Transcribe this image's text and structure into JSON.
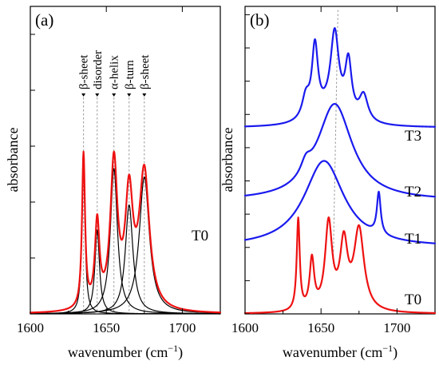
{
  "colors": {
    "T0": "#ee1111",
    "T1": "#1a1aee",
    "T2": "#1a1aee",
    "T3": "#1a1aee",
    "component": "#000000",
    "guide": "#999999"
  },
  "chart_data": [
    {
      "type": "line",
      "panel_label": "(a)",
      "xlabel": "wavenumber (cm",
      "xlabel_sup": "−1",
      "xlabel_close": ")",
      "ylabel": "absorbance",
      "xlim": [
        1600,
        1725
      ],
      "ylim": [
        0,
        1.1
      ],
      "xticks": [
        1600,
        1650,
        1700
      ],
      "xtick_labels": [
        "1600",
        "1650",
        "1700"
      ],
      "yticks": [
        0,
        0.2,
        0.4,
        0.6,
        0.8,
        1.0
      ],
      "grid": false,
      "band_labels": [
        {
          "text": "β-sheet",
          "x": 1635
        },
        {
          "text": "disorder",
          "x": 1644
        },
        {
          "text": "α-helix",
          "x": 1655
        },
        {
          "text": "β-turn",
          "x": 1665
        },
        {
          "text": "β-sheet",
          "x": 1675
        }
      ],
      "components": [
        {
          "center": 1635,
          "height": 0.55,
          "width": 1.2
        },
        {
          "center": 1644,
          "height": 0.3,
          "width": 1.8
        },
        {
          "center": 1655,
          "height": 0.52,
          "width": 2.8
        },
        {
          "center": 1665,
          "height": 0.39,
          "width": 3.0
        },
        {
          "center": 1675,
          "height": 0.49,
          "width": 4.0
        }
      ],
      "series": [
        {
          "name": "T0",
          "role": "sum"
        }
      ]
    },
    {
      "type": "line",
      "panel_label": "(b)",
      "xlabel": "wavenumber (cm",
      "xlabel_sup": "−1",
      "xlabel_close": ")",
      "ylabel": "absorbance",
      "xlim": [
        1600,
        1725
      ],
      "ylim": [
        0,
        1.85
      ],
      "xticks": [
        1600,
        1650,
        1700
      ],
      "xtick_labels": [
        "1600",
        "1650",
        "1700"
      ],
      "yticks": [
        0,
        0.2,
        0.4,
        0.6,
        0.8,
        1.0,
        1.2,
        1.4,
        1.6,
        1.8
      ],
      "guide_x": 1658,
      "grid": false,
      "series": [
        {
          "name": "T0",
          "offset": 0.0,
          "peaks": [
            [
              1635,
              0.55,
              1.2
            ],
            [
              1644,
              0.3,
              1.8
            ],
            [
              1655,
              0.52,
              2.8
            ],
            [
              1665,
              0.39,
              3.0
            ],
            [
              1675,
              0.49,
              4.0
            ]
          ]
        },
        {
          "name": "T1",
          "offset": 0.4,
          "peaks": [
            [
              1652,
              0.52,
              16
            ],
            [
              1688,
              0.25,
              1.5
            ]
          ]
        },
        {
          "name": "T2",
          "offset": 0.68,
          "peaks": [
            [
              1659,
              0.58,
              14
            ],
            [
              1640,
              0.08,
              4
            ]
          ]
        },
        {
          "name": "T3",
          "offset": 1.12,
          "peaks": [
            [
              1646,
              0.42,
              2.4
            ],
            [
              1659,
              0.48,
              3.3
            ],
            [
              1668,
              0.33,
              2.6
            ],
            [
              1640,
              0.13,
              3
            ],
            [
              1678,
              0.16,
              3.5
            ],
            [
              1655,
              0.08,
              12
            ]
          ]
        }
      ]
    }
  ]
}
